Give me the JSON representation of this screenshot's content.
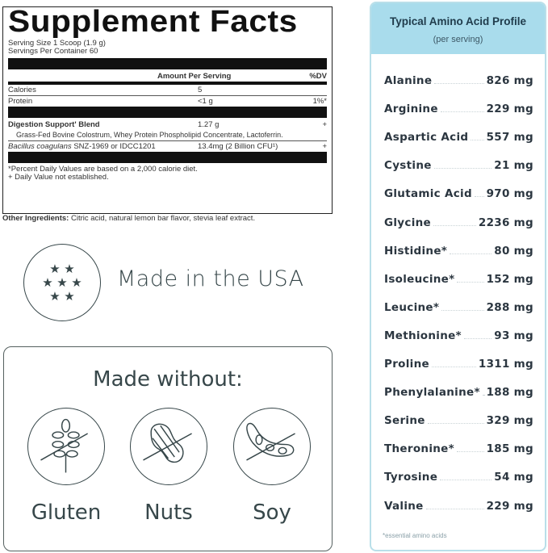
{
  "facts": {
    "title": "Supplement Facts",
    "serving_size": "Serving Size 1 Scoop (1.9 g)",
    "servings": "Servings Per Container 60",
    "col_amount": "Amount Per Serving",
    "col_dv": "%DV",
    "rows": [
      {
        "name": "Calories",
        "amount": "5",
        "dv": ""
      },
      {
        "name": "Protein",
        "amount": "<1 g",
        "dv": "1%*"
      }
    ],
    "blend": {
      "name": "Digestion Support' Blend",
      "amount": "1.27 g",
      "dv": "+",
      "ingredients": "Grass-Fed Bovine Colostrum, Whey Protein Phospholipid Concentrate, Lactoferrin."
    },
    "bacillus": {
      "name_italic": "Bacillus coagulans",
      "name_rest": " SNZ-1969 or IDCC1201",
      "amount": "13.4mg (2 Billion CFU¹)",
      "dv": "+"
    },
    "footnote1": "*Percent Daily Values are based on a 2,000 calorie diet.",
    "footnote2": "+ Daily Value not established.",
    "other_label": "Other Ingredients:",
    "other_text": " Citric acid, natural lemon bar flavor, stevia leaf extract."
  },
  "usa": {
    "label": "Made in the USA",
    "icon": "stars-icon"
  },
  "made_without": {
    "title": "Made without:",
    "items": [
      {
        "label": "Gluten",
        "icon": "wheat-icon"
      },
      {
        "label": "Nuts",
        "icon": "peanut-icon"
      },
      {
        "label": "Soy",
        "icon": "soybean-icon"
      }
    ]
  },
  "amino": {
    "title": "Typical Amino Acid Profile",
    "subtitle": "(per serving)",
    "header_color": "#a9dcec",
    "rows": [
      {
        "name": "Alanine",
        "value": "826 mg"
      },
      {
        "name": "Arginine",
        "value": "229 mg"
      },
      {
        "name": "Aspartic Acid",
        "value": "557 mg"
      },
      {
        "name": "Cystine",
        "value": "21 mg"
      },
      {
        "name": "Glutamic Acid",
        "value": "970 mg"
      },
      {
        "name": "Glycine",
        "value": "2236 mg"
      },
      {
        "name": "Histidine*",
        "value": "80 mg"
      },
      {
        "name": "Isoleucine*",
        "value": "152 mg"
      },
      {
        "name": "Leucine*",
        "value": "288 mg"
      },
      {
        "name": "Methionine*",
        "value": "93 mg"
      },
      {
        "name": "Proline",
        "value": "1311 mg"
      },
      {
        "name": "Phenylalanine*",
        "value": "188 mg"
      },
      {
        "name": "Serine",
        "value": "329 mg"
      },
      {
        "name": "Theronine*",
        "value": "185 mg"
      },
      {
        "name": "Tyrosine",
        "value": "54 mg"
      },
      {
        "name": "Valine",
        "value": "229 mg"
      }
    ],
    "footnote": "*essential amino acids"
  }
}
